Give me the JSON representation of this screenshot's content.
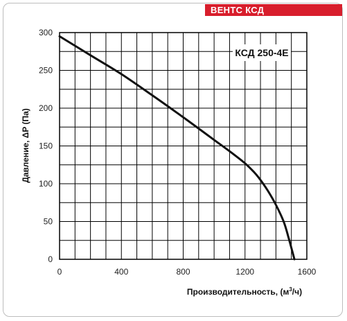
{
  "brand": {
    "label": "ВЕНТС КСД",
    "color": "#d81e2c"
  },
  "chart_data": {
    "type": "line",
    "title": "КСД 250-4Е",
    "xlabel_main": "Производительность, (м",
    "xlabel_sup": "3",
    "xlabel_end": "/ч)",
    "ylabel": "Давление, ΔP (Па)",
    "xlim": [
      0,
      1600
    ],
    "ylim": [
      0,
      300
    ],
    "xticks": [
      0,
      400,
      800,
      1200,
      1600
    ],
    "yticks": [
      0,
      50,
      100,
      150,
      200,
      250,
      300
    ],
    "grid": true,
    "grid_color": "#000000",
    "line_color": "#111111",
    "series": [
      {
        "x": [
          0,
          200,
          400,
          600,
          800,
          1000,
          1100,
          1200,
          1260,
          1300,
          1350,
          1400,
          1450,
          1480,
          1500,
          1520
        ],
        "y": [
          295,
          270,
          245,
          217,
          188,
          158,
          143,
          127,
          115,
          105,
          90,
          72,
          50,
          30,
          15,
          0
        ]
      }
    ]
  }
}
